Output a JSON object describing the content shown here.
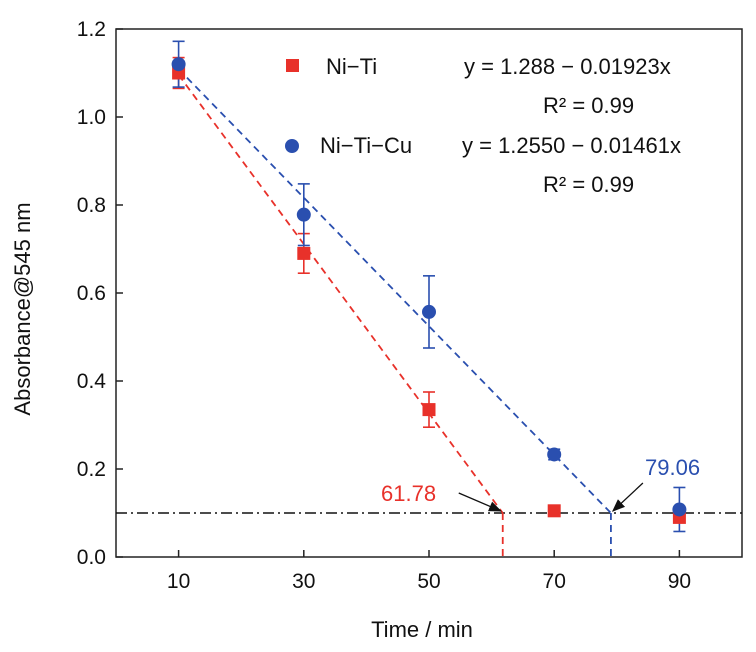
{
  "chart_data": {
    "type": "scatter",
    "title": "",
    "xlabel": "Time / min",
    "ylabel": "Absorbance@545 nm",
    "xlim": [
      0,
      100
    ],
    "ylim": [
      0,
      1.2
    ],
    "x_ticks": [
      10,
      30,
      50,
      70,
      90
    ],
    "x_tick_labels": [
      "10",
      "30",
      "50",
      "70",
      "90"
    ],
    "y_ticks": [
      0,
      0.2,
      0.4,
      0.6,
      0.8,
      1.0,
      1.2
    ],
    "y_tick_labels": [
      "0.0",
      "0.2",
      "0.4",
      "0.6",
      "0.8",
      "1.0",
      "1.2"
    ],
    "grid": false,
    "legend_position": "top-center",
    "series": [
      {
        "name": "Ni−Ti",
        "marker": "square",
        "color": "#e8312a",
        "x": [
          10,
          30,
          50,
          70,
          90
        ],
        "y": [
          1.1,
          0.69,
          0.335,
          0.105,
          0.09
        ],
        "error": [
          0.035,
          0.045,
          0.04,
          0.0,
          0.0
        ],
        "fit": {
          "x_start": 10,
          "x_end": 61.78,
          "intercept": 1.288,
          "slope": -0.01923
        }
      },
      {
        "name": "Ni−Ti−Cu",
        "marker": "circle",
        "color": "#2a4faf",
        "x": [
          10,
          30,
          50,
          70,
          90
        ],
        "y": [
          1.12,
          0.778,
          0.557,
          0.233,
          0.108
        ],
        "error": [
          0.052,
          0.07,
          0.082,
          0.012,
          0.05
        ],
        "fit": {
          "x_start": 10,
          "x_end": 79.06,
          "intercept": 1.255,
          "slope": -0.01461
        }
      }
    ],
    "equations": [
      {
        "label": "y = 1.288 − 0.01923x",
        "r2": "R² = 0.99"
      },
      {
        "label": "y = 1.2550 − 0.01461x",
        "r2": "R² = 0.99"
      }
    ],
    "threshold_line": {
      "y": 0.1,
      "style": "dash-dot",
      "color": "#111111"
    },
    "annotations": [
      {
        "text": "61.78",
        "x": 61.78,
        "color": "#e8312a"
      },
      {
        "text": "79.06",
        "x": 79.06,
        "color": "#2a4faf"
      }
    ]
  }
}
